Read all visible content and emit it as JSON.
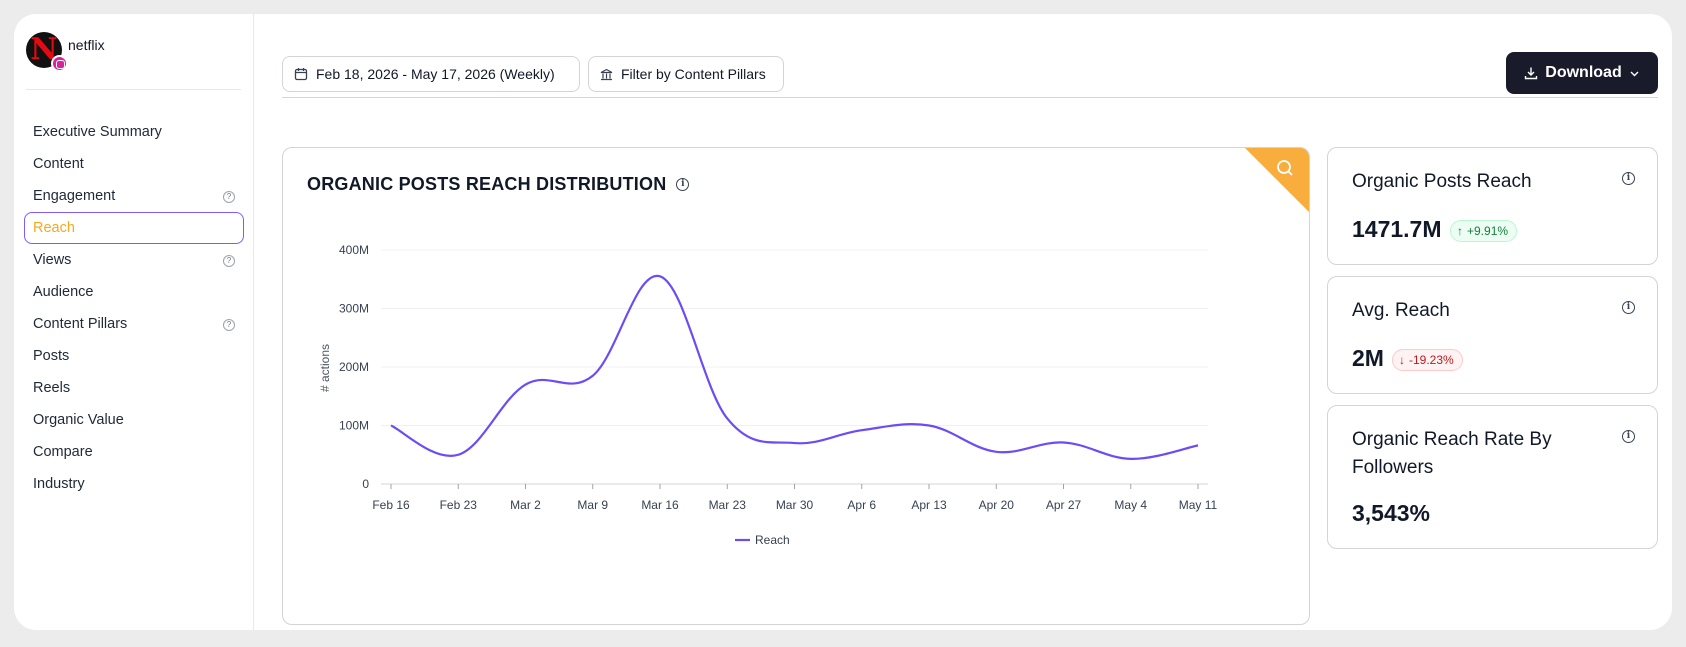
{
  "brand": {
    "name": "netflix"
  },
  "sidebar": {
    "items": [
      {
        "label": "Executive Summary",
        "help": false,
        "active": false
      },
      {
        "label": "Content",
        "help": false,
        "active": false
      },
      {
        "label": "Engagement",
        "help": true,
        "active": false
      },
      {
        "label": "Reach",
        "help": false,
        "active": true
      },
      {
        "label": "Views",
        "help": true,
        "active": false
      },
      {
        "label": "Audience",
        "help": false,
        "active": false
      },
      {
        "label": "Content Pillars",
        "help": true,
        "active": false
      },
      {
        "label": "Posts",
        "help": false,
        "active": false
      },
      {
        "label": "Reels",
        "help": false,
        "active": false
      },
      {
        "label": "Organic Value",
        "help": false,
        "active": false
      },
      {
        "label": "Compare",
        "help": false,
        "active": false
      },
      {
        "label": "Industry",
        "help": false,
        "active": false
      }
    ]
  },
  "toolbar": {
    "date_range": "Feb 18, 2026 - May 17, 2026 (Weekly)",
    "filter_label": "Filter by Content Pillars",
    "download_label": "Download"
  },
  "chart_card": {
    "title": "ORGANIC POSTS REACH DISTRIBUTION"
  },
  "chart_data": {
    "type": "line",
    "title": "ORGANIC POSTS REACH DISTRIBUTION",
    "ylabel": "# actions",
    "xlabel": "",
    "ylim": [
      0,
      400000000
    ],
    "yticks": [
      0,
      100000000,
      200000000,
      300000000,
      400000000
    ],
    "ytick_labels": [
      "0",
      "100M",
      "200M",
      "300M",
      "400M"
    ],
    "categories": [
      "Feb 16",
      "Feb 23",
      "Mar 2",
      "Mar 9",
      "Mar 16",
      "Mar 23",
      "Mar 30",
      "Apr 6",
      "Apr 13",
      "Apr 20",
      "Apr 27",
      "May 4",
      "May 11"
    ],
    "series": [
      {
        "name": "Reach",
        "color": "#6b4cf6",
        "values": [
          100000000,
          50000000,
          170000000,
          185000000,
          355000000,
          112000000,
          70000000,
          92000000,
          100000000,
          55000000,
          71000000,
          43000000,
          66000000
        ]
      }
    ],
    "grid": true,
    "legend": "bottom-center"
  },
  "kpis": [
    {
      "title": "Organic Posts Reach",
      "value": "1471.7M",
      "change": "+9.91%",
      "direction": "up"
    },
    {
      "title": "Avg. Reach",
      "value": "2M",
      "change": "-19.23%",
      "direction": "down"
    },
    {
      "title": "Organic Reach Rate By Followers",
      "value": "3,543%",
      "change": "",
      "direction": ""
    }
  ],
  "colors": {
    "accent": "#6b4cf6",
    "active_text": "#f6a91f",
    "corner_badge": "#f9ad3d",
    "download_bg": "#1a1b2a"
  }
}
